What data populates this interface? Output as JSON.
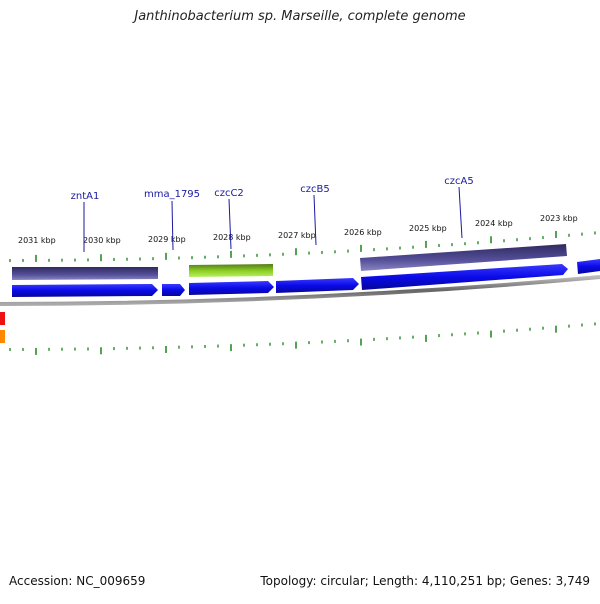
{
  "title": "Janthinobacterium sp. Marseille, complete genome",
  "footer": {
    "accession": "Accession: NC_009659",
    "summary": "Topology: circular; Length: 4,110,251 bp; Genes: 3,749"
  },
  "ticks": [
    "2031 kbp",
    "2030 kbp",
    "2029 kbp",
    "2028 kbp",
    "2027 kbp",
    "2026 kbp",
    "2025 kbp",
    "2024 kbp",
    "2023 kbp"
  ],
  "genes": [
    {
      "label": "zntA1"
    },
    {
      "label": "mma_1795"
    },
    {
      "label": "czcC2"
    },
    {
      "label": "czcB5"
    },
    {
      "label": "czcA5"
    }
  ],
  "colors": {
    "cds_forward": "#1010e0",
    "cds_reverse": "#4a4488",
    "highlight": "#88cc22",
    "backbone": "#777777",
    "tick": "#2a8a2a",
    "label": "#1a1aa0"
  }
}
